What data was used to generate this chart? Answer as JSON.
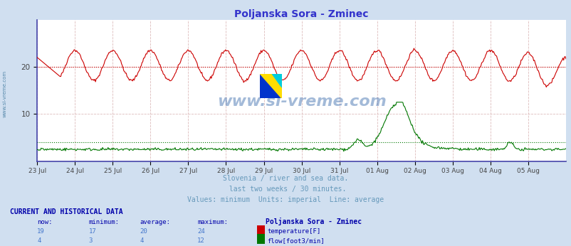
{
  "title": "Poljanska Sora - Zminec",
  "title_color": "#3333cc",
  "bg_color": "#d0dff0",
  "plot_bg_color": "#ffffff",
  "x_labels": [
    "23 Jul",
    "24 Jul",
    "25 Jul",
    "26 Jul",
    "27 Jul",
    "28 Jul",
    "29 Jul",
    "30 Jul",
    "31 Jul",
    "01 Aug",
    "02 Aug",
    "03 Aug",
    "04 Aug",
    "05 Aug"
  ],
  "ylim": [
    0,
    30
  ],
  "y_ticks": [
    10,
    20
  ],
  "temp_color": "#cc0000",
  "temp_avg": 20,
  "temp_min": 17,
  "temp_max": 24,
  "temp_now": 19,
  "flow_color": "#007700",
  "flow_avg": 4,
  "flow_min": 3,
  "flow_max": 12,
  "flow_now": 4,
  "grid_color": "#ddbbbb",
  "watermark": "www.si-vreme.com",
  "subtitle1": "Slovenia / river and sea data.",
  "subtitle2": " last two weeks / 30 minutes.",
  "subtitle3": "Values: minimum  Units: imperial  Line: average",
  "subtitle_color": "#6699bb",
  "table_header_color": "#0000aa",
  "table_data_color": "#4477cc",
  "n_points": 672
}
